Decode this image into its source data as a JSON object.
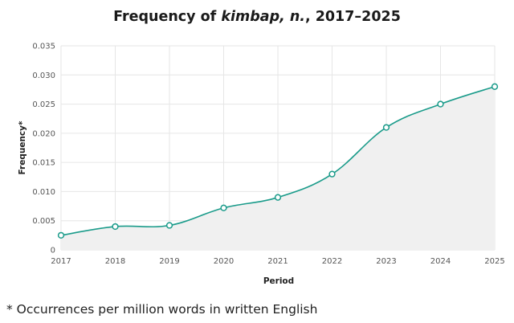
{
  "chart_data": {
    "type": "area",
    "title": {
      "prefix": "Frequency of ",
      "word": "kimbap, n.",
      "suffix": ", 2017–2025"
    },
    "xlabel": "Period",
    "ylabel": "Frequency*",
    "x": [
      "2017",
      "2018",
      "2019",
      "2020",
      "2021",
      "2022",
      "2023",
      "2024",
      "2025"
    ],
    "values": [
      0.0025,
      0.004,
      0.0042,
      0.0072,
      0.009,
      0.013,
      0.021,
      0.025,
      0.028
    ],
    "ylim": [
      0,
      0.035
    ],
    "yticks": [
      "0",
      "0.005",
      "0.010",
      "0.015",
      "0.020",
      "0.025",
      "0.030",
      "0.035"
    ],
    "ytick_values": [
      0,
      0.005,
      0.01,
      0.015,
      0.02,
      0.025,
      0.03,
      0.035
    ],
    "grid": true,
    "colors": {
      "line": "#1a9b8a",
      "fill": "#f0f0f0",
      "grid": "#e6e6e6",
      "marker_fill": "#ffffff"
    }
  },
  "footnote": "* Occurrences per million words in written English"
}
